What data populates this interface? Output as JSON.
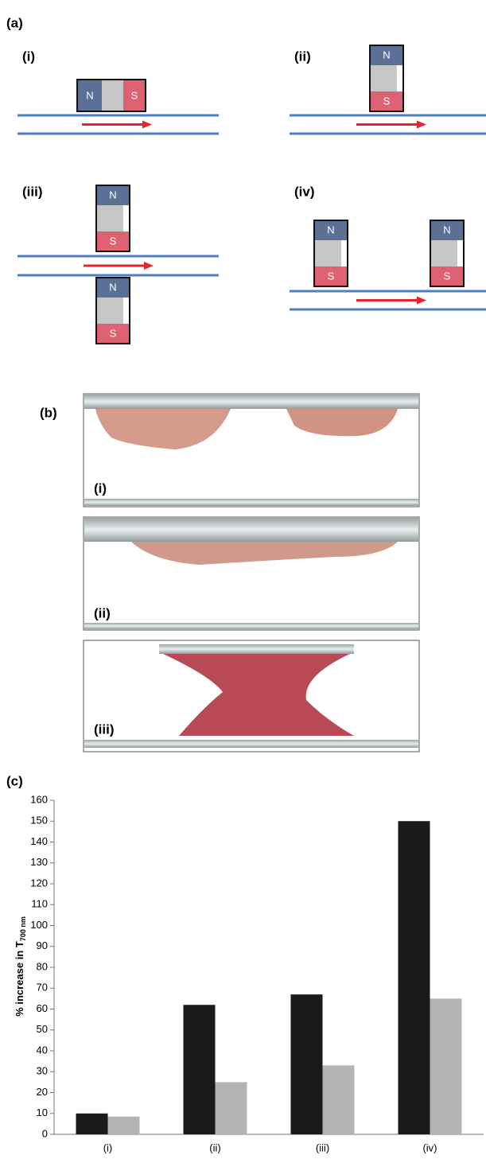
{
  "panel_a": {
    "label": "(a)",
    "magnet_north": "N",
    "magnet_south": "S",
    "subpanels": [
      "(i)",
      "(ii)",
      "(iii)",
      "(iv)"
    ]
  },
  "panel_b": {
    "label": "(b)",
    "subpanels": [
      "(i)",
      "(ii)",
      "(iii)"
    ]
  },
  "panel_c": {
    "label": "(c)"
  },
  "chart_data": {
    "type": "bar",
    "y_label": "% increase in T",
    "y_label_sub": "700 nm",
    "categories": [
      "(i)",
      "(ii)",
      "(iii)",
      "(iv)"
    ],
    "series": [
      {
        "color": "#1a1a1a",
        "values": [
          10,
          62,
          67,
          150
        ]
      },
      {
        "color": "#b1b3b4",
        "values": [
          8.5,
          25,
          33,
          65
        ]
      }
    ],
    "ylim": [
      0,
      160
    ],
    "yticks": [
      0,
      10,
      20,
      30,
      40,
      50,
      60,
      70,
      80,
      90,
      100,
      110,
      120,
      130,
      140,
      150,
      160
    ]
  }
}
